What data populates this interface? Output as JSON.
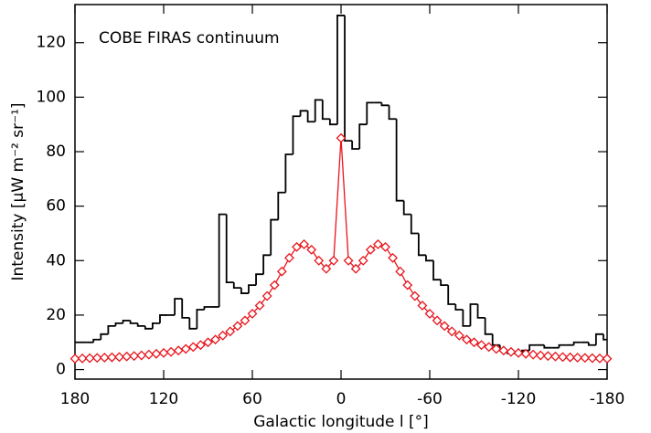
{
  "chart_data": {
    "type": "line",
    "annotation": "COBE FIRAS continuum",
    "x_label": "Galactic longitude l [°]",
    "y_label": "Intensity [μW m⁻² sr⁻¹]",
    "xlim": [
      180,
      -180
    ],
    "ylim": [
      -3.5,
      134
    ],
    "xticks": [
      180,
      120,
      60,
      0,
      -60,
      -120,
      -180
    ],
    "yticks": [
      0,
      20,
      40,
      60,
      80,
      100,
      120
    ],
    "series": [
      {
        "color": "#000000",
        "drawstyle": "steps",
        "bins": [
          180,
          177.5,
          172.5,
          167.5,
          162.5,
          157.5,
          152.5,
          147.5,
          142.5,
          137.5,
          132.5,
          127.5,
          122.5,
          117.5,
          112.5,
          107.5,
          102.5,
          97.5,
          92.5,
          87.5,
          82.5,
          77.5,
          72.5,
          67.5,
          62.5,
          57.5,
          52.5,
          47.5,
          42.5,
          37.5,
          32.5,
          27.5,
          22.5,
          17.5,
          12.5,
          7.5,
          2.5,
          -2.5,
          -7.5,
          -12.5,
          -17.5,
          -22.5,
          -27.5,
          -32.5,
          -37.5,
          -42.5,
          -47.5,
          -52.5,
          -57.5,
          -62.5,
          -67.5,
          -72.5,
          -77.5,
          -82.5,
          -87.5,
          -92.5,
          -97.5,
          -102.5,
          -107.5,
          -112.5,
          -117.5,
          -122.5,
          -127.5,
          -132.5,
          -137.5,
          -142.5,
          -147.5,
          -152.5,
          -157.5,
          -162.5,
          -167.5,
          -172.5,
          -177.5,
          -180
        ],
        "values": [
          10,
          10,
          10,
          11,
          13,
          16,
          17,
          18,
          17,
          16,
          15,
          17,
          20,
          20,
          26,
          19,
          15,
          22,
          23,
          23,
          57,
          32,
          30,
          28,
          31,
          35,
          42,
          55,
          65,
          79,
          93,
          95,
          91,
          99,
          92,
          90,
          130,
          84,
          81,
          90,
          98,
          98,
          97,
          92,
          62,
          57,
          50,
          42,
          40,
          33,
          31,
          24,
          22,
          16,
          24,
          19,
          13,
          9,
          7,
          6,
          6,
          7,
          9,
          9,
          8,
          8,
          9,
          9,
          10,
          10,
          9,
          13,
          11
        ]
      },
      {
        "color": "#e8141c",
        "marker": "diamond",
        "x": [
          180,
          175,
          170,
          165,
          160,
          155,
          150,
          145,
          140,
          135,
          130,
          125,
          120,
          115,
          110,
          105,
          100,
          95,
          90,
          85,
          80,
          75,
          70,
          65,
          60,
          55,
          50,
          45,
          40,
          35,
          30,
          25,
          20,
          15,
          10,
          5,
          0,
          -5,
          -10,
          -15,
          -20,
          -25,
          -30,
          -35,
          -40,
          -45,
          -50,
          -55,
          -60,
          -65,
          -70,
          -75,
          -80,
          -85,
          -90,
          -95,
          -100,
          -105,
          -110,
          -115,
          -120,
          -125,
          -130,
          -135,
          -140,
          -145,
          -150,
          -155,
          -160,
          -165,
          -170,
          -175,
          -180
        ],
        "values": [
          4,
          4.1,
          4.2,
          4.3,
          4.4,
          4.5,
          4.6,
          4.8,
          5,
          5.2,
          5.5,
          5.8,
          6.1,
          6.5,
          7,
          7.6,
          8.3,
          9,
          10,
          11,
          12.5,
          14,
          16,
          18,
          20.5,
          23.5,
          27,
          31,
          36,
          41,
          45,
          46,
          44,
          40,
          37,
          40,
          85,
          40,
          37,
          40,
          44,
          46,
          45,
          41,
          36,
          31,
          27,
          23.5,
          20.5,
          18,
          16,
          14,
          12.5,
          11,
          10,
          9,
          8.3,
          7.6,
          7,
          6.5,
          6.1,
          5.8,
          5.5,
          5.2,
          5,
          4.8,
          4.6,
          4.5,
          4.4,
          4.3,
          4.2,
          4.1,
          4
        ]
      }
    ]
  }
}
